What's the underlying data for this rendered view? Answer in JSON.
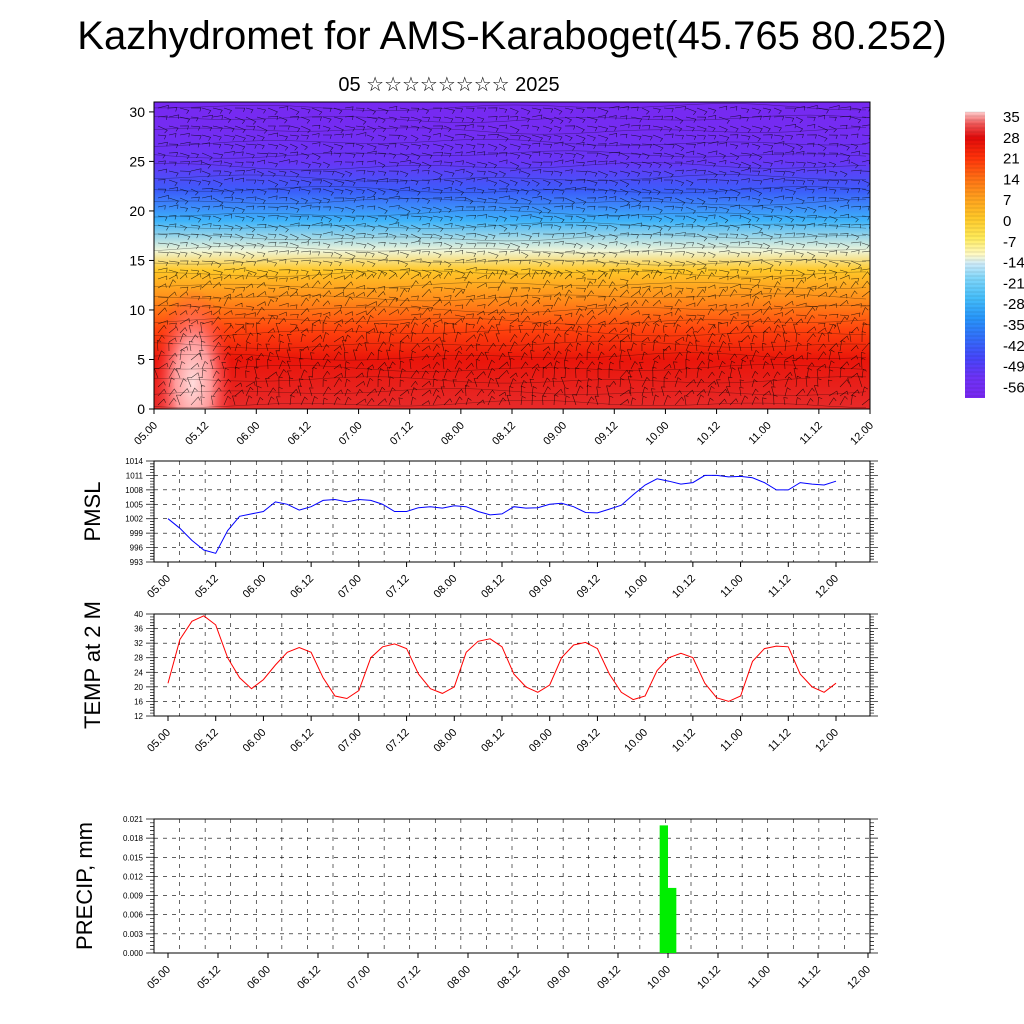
{
  "title": "Kazhydromet for AMS-Karaboget(45.765 80.252)",
  "subtitle": "05 ☆☆☆☆☆☆☆☆ 2025",
  "time_ticks": [
    "05.00",
    "05.12",
    "06.00",
    "06.12",
    "07.00",
    "07.12",
    "08.00",
    "08.12",
    "09.00",
    "09.12",
    "10.00",
    "10.12",
    "11.00",
    "11.12",
    "12.00"
  ],
  "colors": {
    "pmsl_line": "#0000ff",
    "temp_line": "#ff0000",
    "precip_bar": "#00ee00"
  },
  "chart_data": [
    {
      "type": "heatmap",
      "name": "cross-section",
      "y_ticks": [
        0,
        5,
        10,
        15,
        20,
        25,
        30
      ],
      "ylim": [
        0,
        31
      ],
      "colorbar_labels": [
        "35",
        "28",
        "21",
        "14",
        "7",
        "0",
        "-7",
        "-14",
        "-21",
        "-28",
        "-35",
        "-42",
        "-49",
        "-56"
      ],
      "colorbar_range": [
        -63,
        37
      ],
      "temperature_profile_by_level": [
        [
          0,
          30
        ],
        [
          5,
          26
        ],
        [
          8,
          19
        ],
        [
          11,
          10
        ],
        [
          14,
          0
        ],
        [
          16,
          -14
        ],
        [
          19,
          -30
        ],
        [
          22,
          -45
        ],
        [
          25,
          -55
        ],
        [
          28,
          -60
        ],
        [
          31,
          -62
        ]
      ],
      "wind_barbs": true
    },
    {
      "type": "line",
      "name": "pmsl",
      "ylabel": "PMSL",
      "y_ticks": [
        "1014",
        "1011",
        "1008",
        "1005",
        "1002",
        "999",
        "996",
        "993"
      ],
      "ylim": [
        993,
        1014
      ],
      "x_step_hours": 3,
      "values": [
        1002,
        1000,
        997.5,
        995.5,
        994.8,
        999.5,
        1002.5,
        1003,
        1003.5,
        1005.5,
        1005,
        1003.8,
        1004.5,
        1005.8,
        1006,
        1005.5,
        1006,
        1005.8,
        1005,
        1003.5,
        1003.5,
        1004.3,
        1004.5,
        1004.2,
        1004.7,
        1004.5,
        1003.5,
        1002.8,
        1003,
        1004.5,
        1004.2,
        1004.3,
        1005,
        1005.2,
        1004.5,
        1003.3,
        1003.2,
        1004,
        1004.8,
        1007,
        1009,
        1010.3,
        1009.8,
        1009.2,
        1009.5,
        1011,
        1011,
        1010.7,
        1010.8,
        1010.5,
        1009.5,
        1008,
        1008,
        1009.5,
        1009.2,
        1009,
        1009.8
      ]
    },
    {
      "type": "line",
      "name": "temp2m",
      "ylabel": "TEMP at 2 M",
      "y_ticks": [
        "40",
        "36",
        "32",
        "28",
        "24",
        "20",
        "16",
        "12"
      ],
      "ylim": [
        12,
        40
      ],
      "x_step_hours": 3,
      "values": [
        21,
        33,
        38,
        39.5,
        37,
        28,
        22.5,
        19.5,
        22,
        26,
        29.5,
        30.8,
        29.5,
        22.5,
        17.5,
        16.8,
        19,
        28,
        31,
        31.8,
        30.5,
        23.5,
        19.5,
        18.2,
        20,
        29.5,
        32.5,
        33.2,
        31,
        23.5,
        20,
        18.5,
        20.5,
        28,
        31.5,
        32.2,
        30.5,
        23.5,
        18.5,
        16.5,
        17.5,
        24.5,
        28,
        29.2,
        28,
        21,
        17,
        16,
        17.5,
        27,
        30.5,
        31.2,
        31,
        23.5,
        20,
        18.5,
        21
      ]
    },
    {
      "type": "bar",
      "name": "precip",
      "ylabel": "PRECIP, mm",
      "y_ticks": [
        "0.021",
        "0.018",
        "0.015",
        "0.012",
        "0.009",
        "0.006",
        "0.003",
        "0.000"
      ],
      "ylim": [
        0,
        0.021
      ],
      "bars": [
        {
          "t0_hours": 118,
          "t1_hours": 120,
          "value": 0.02
        },
        {
          "t0_hours": 120,
          "t1_hours": 122,
          "value": 0.0102
        }
      ]
    }
  ]
}
